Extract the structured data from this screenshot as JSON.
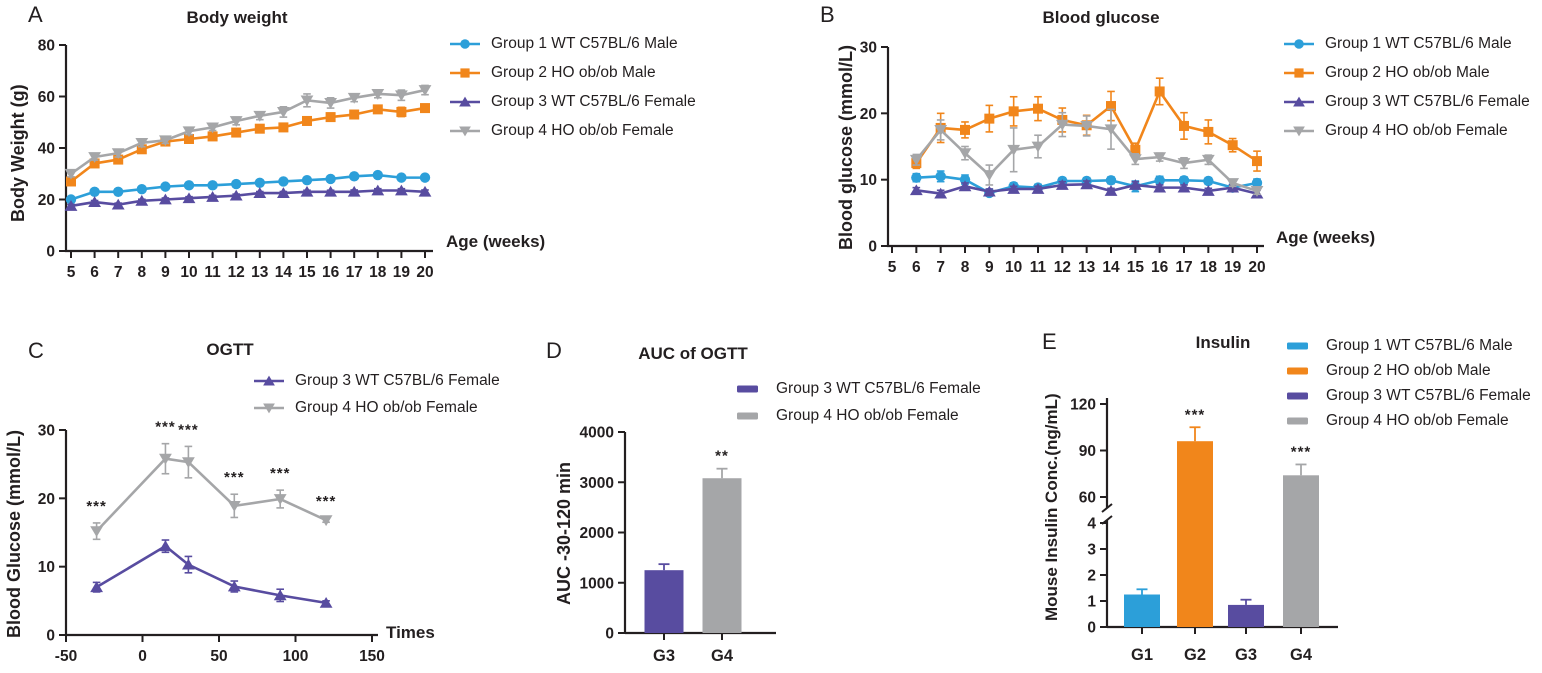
{
  "figure": {
    "background": "#ffffff",
    "text_color": "#231F20"
  },
  "colors": {
    "group1_blue": "#2C9FD9",
    "group2_orange": "#F1861B",
    "group3_purple": "#584CA0",
    "group4_gray": "#A5A6A8",
    "axis": "#231F20"
  },
  "chart_data": [
    {
      "id": "A",
      "panel_letter": "A",
      "type": "line",
      "title": "Body weight",
      "xlabel": "Age (weeks)",
      "ylabel": "Body Weight (g)",
      "xlim": [
        5,
        20
      ],
      "ylim": [
        0,
        80
      ],
      "xticks": [
        5,
        6,
        7,
        8,
        9,
        10,
        11,
        12,
        13,
        14,
        15,
        16,
        17,
        18,
        19,
        20
      ],
      "yticks": [
        0,
        20,
        40,
        60,
        80
      ],
      "x": [
        5,
        6,
        7,
        8,
        9,
        10,
        11,
        12,
        13,
        14,
        15,
        16,
        17,
        18,
        19,
        20
      ],
      "legend_position": "right",
      "series": [
        {
          "name": "Group 1 WT C57BL/6 Male",
          "color": "group1_blue",
          "marker": "circle",
          "values": [
            20,
            23,
            23,
            24,
            25,
            25.5,
            25.5,
            26,
            26.5,
            27,
            27.5,
            28,
            29,
            29.5,
            28.5,
            28.5
          ],
          "err": [
            0.8,
            0.7,
            0.6,
            0.6,
            0.6,
            0.6,
            0.6,
            0.6,
            0.6,
            0.7,
            0.7,
            0.7,
            0.8,
            0.8,
            0.8,
            0.9
          ]
        },
        {
          "name": "Group 2 HO ob/ob Male",
          "color": "group2_orange",
          "marker": "square",
          "values": [
            27,
            34,
            35.5,
            39.5,
            42.5,
            43.5,
            44.5,
            46,
            47.5,
            48,
            50.5,
            52,
            53,
            55,
            54,
            55.5
          ],
          "err": [
            1.2,
            1.0,
            1.3,
            1.5,
            1.2,
            1.2,
            1.2,
            1.3,
            1.3,
            1.5,
            1.5,
            1.5,
            1.5,
            1.2,
            1.8,
            1.5
          ]
        },
        {
          "name": "Group 3 WT C57BL/6 Female",
          "color": "group3_purple",
          "marker": "triangle-up",
          "values": [
            17.5,
            19,
            18,
            19.5,
            20,
            20.5,
            21,
            21.5,
            22.5,
            22.5,
            23,
            23,
            23,
            23.5,
            23.5,
            23
          ],
          "err": [
            0.6,
            0.6,
            0.6,
            0.6,
            0.6,
            0.6,
            0.6,
            0.6,
            0.6,
            0.6,
            0.6,
            0.6,
            0.7,
            0.7,
            0.7,
            0.7
          ]
        },
        {
          "name": "Group 4 HO ob/ob Female",
          "color": "group4_gray",
          "marker": "triangle-down",
          "values": [
            30,
            36.5,
            38,
            42,
            43,
            46.5,
            48,
            50.5,
            52.5,
            54,
            58.5,
            57.5,
            59.5,
            61,
            60.5,
            62.5
          ],
          "err": [
            1.2,
            1.2,
            1.5,
            1.5,
            1.2,
            1.3,
            1.2,
            1.5,
            1.5,
            2.0,
            2.5,
            2.0,
            1.5,
            1.5,
            2.0,
            1.8
          ]
        }
      ]
    },
    {
      "id": "B",
      "panel_letter": "B",
      "type": "line",
      "title": "Blood glucose",
      "xlabel": "Age (weeks)",
      "ylabel": "Blood glucose (mmol/L)",
      "xlim": [
        5,
        20
      ],
      "ylim": [
        0,
        30
      ],
      "xticks": [
        5,
        6,
        7,
        8,
        9,
        10,
        11,
        12,
        13,
        14,
        15,
        16,
        17,
        18,
        19,
        20
      ],
      "yticks": [
        0,
        10,
        20,
        30
      ],
      "x": [
        6,
        7,
        8,
        9,
        10,
        11,
        12,
        13,
        14,
        15,
        16,
        17,
        18,
        19,
        20
      ],
      "legend_position": "right",
      "series": [
        {
          "name": "Group 1 WT C57BL/6 Male",
          "color": "group1_blue",
          "marker": "circle",
          "values": [
            10.3,
            10.5,
            10.0,
            8.0,
            9.0,
            8.8,
            9.8,
            9.8,
            9.9,
            9.0,
            9.9,
            9.9,
            9.8,
            8.8,
            9.5
          ],
          "err": [
            0.6,
            0.8,
            0.7,
            0.4,
            0.5,
            0.5,
            0.5,
            0.5,
            0.5,
            0.8,
            0.6,
            0.5,
            0.5,
            0.5,
            0.6
          ]
        },
        {
          "name": "Group 2 HO ob/ob Male",
          "color": "group2_orange",
          "marker": "square",
          "values": [
            12.5,
            17.8,
            17.5,
            19.2,
            20.3,
            20.7,
            19.0,
            18.2,
            21.1,
            14.5,
            23.3,
            18.1,
            17.2,
            15.2,
            12.8
          ],
          "err": [
            0.8,
            2.2,
            1.2,
            2.0,
            2.2,
            1.8,
            1.8,
            1.5,
            2.2,
            1.0,
            2.0,
            2.0,
            1.8,
            1.0,
            1.5
          ]
        },
        {
          "name": "Group 3 WT C57BL/6 Female",
          "color": "group3_purple",
          "marker": "triangle-up",
          "values": [
            8.4,
            7.9,
            9.0,
            8.2,
            8.6,
            8.6,
            9.2,
            9.3,
            8.3,
            9.2,
            8.8,
            8.8,
            8.3,
            8.8,
            7.9
          ],
          "err": [
            0.4,
            0.5,
            0.5,
            0.4,
            0.4,
            0.4,
            0.5,
            0.5,
            0.4,
            0.5,
            0.4,
            0.4,
            0.4,
            0.4,
            0.5
          ]
        },
        {
          "name": "Group 4 HO ob/ob Female",
          "color": "group4_gray",
          "marker": "triangle-down",
          "values": [
            13.0,
            17.5,
            14.0,
            10.7,
            14.5,
            15.0,
            18.3,
            18.1,
            17.6,
            13.1,
            13.4,
            12.5,
            13.0,
            9.5,
            8.3
          ],
          "err": [
            0.8,
            1.5,
            1.0,
            1.5,
            3.3,
            1.7,
            1.8,
            1.5,
            3.0,
            0.8,
            0.6,
            0.8,
            0.7,
            0.5,
            0.5
          ]
        }
      ]
    },
    {
      "id": "C",
      "panel_letter": "C",
      "type": "line",
      "title": "OGTT",
      "xlabel": "Times",
      "ylabel": "Blood Glucose (mmol/L)",
      "xlim": [
        -50,
        150
      ],
      "ylim": [
        0,
        30
      ],
      "xticks": [
        -50,
        0,
        50,
        100,
        150
      ],
      "yticks": [
        0,
        10,
        20,
        30
      ],
      "x": [
        -30,
        15,
        30,
        60,
        90,
        120
      ],
      "legend_position": "top-right",
      "series": [
        {
          "name": "Group 3 WT C57BL/6 Female",
          "color": "group3_purple",
          "marker": "triangle-up",
          "values": [
            7.0,
            13.0,
            10.3,
            7.1,
            5.8,
            4.7
          ],
          "err": [
            0.7,
            0.9,
            1.2,
            0.8,
            0.9,
            0.3
          ]
        },
        {
          "name": "Group 4 HO ob/ob Female",
          "color": "group4_gray",
          "marker": "triangle-down",
          "values": [
            15.2,
            25.8,
            25.3,
            18.9,
            19.9,
            16.8
          ],
          "err": [
            1.2,
            2.2,
            2.3,
            1.7,
            1.3,
            0.3
          ],
          "stars": [
            "***",
            "***",
            "***",
            "***",
            "***",
            "***"
          ]
        }
      ]
    },
    {
      "id": "D",
      "panel_letter": "D",
      "type": "bar",
      "title": "AUC of OGTT",
      "ylabel": "AUC -30-120 min",
      "ylim": [
        0,
        4000
      ],
      "yticks": [
        0,
        1000,
        2000,
        3000,
        4000
      ],
      "categories": [
        "G3",
        "G4"
      ],
      "legend_position": "top-right",
      "bars": [
        {
          "name": "Group 3 WT C57BL/6 Female",
          "color": "group3_purple",
          "value": 1250,
          "err": 120,
          "star": ""
        },
        {
          "name": "Group 4 HO ob/ob Female",
          "color": "group4_gray",
          "value": 3080,
          "err": 190,
          "star": "**"
        }
      ]
    },
    {
      "id": "E",
      "panel_letter": "E",
      "type": "bar",
      "title": "Insulin",
      "ylabel": "Mouse Insulin Conc.(ng/mL)",
      "axis_break": {
        "lower_lim": [
          0,
          4
        ],
        "lower_ticks": [
          0,
          1,
          2,
          3,
          4
        ],
        "upper_lim": [
          60,
          120
        ],
        "upper_ticks": [
          60,
          90,
          120
        ]
      },
      "categories": [
        "G1",
        "G2",
        "G3",
        "G4"
      ],
      "legend_position": "top-right",
      "bars": [
        {
          "name": "Group 1 WT C57BL/6 Male",
          "color": "group1_blue",
          "value": 1.25,
          "err": 0.2,
          "star": ""
        },
        {
          "name": "Group 2 HO ob/ob Male",
          "color": "group2_orange",
          "value": 96,
          "err": 9,
          "star": "***"
        },
        {
          "name": "Group 3 WT C57BL/6 Female",
          "color": "group3_purple",
          "value": 0.85,
          "err": 0.2,
          "star": ""
        },
        {
          "name": "Group 4 HO ob/ob Female",
          "color": "group4_gray",
          "value": 74,
          "err": 7,
          "star": "***"
        }
      ]
    }
  ]
}
